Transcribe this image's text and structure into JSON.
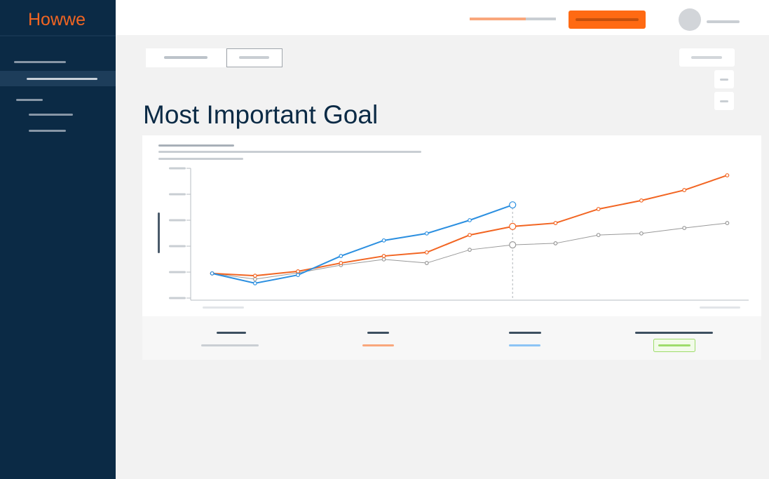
{
  "sidebar": {
    "logo": "Howwe"
  },
  "page": {
    "title": "Most Important Goal"
  },
  "chart_data": {
    "type": "line",
    "x": [
      0,
      1,
      2,
      3,
      4,
      5,
      6,
      7,
      8,
      9,
      10,
      11,
      12
    ],
    "xlim": [
      -0.5,
      12.5
    ],
    "ylim": [
      0,
      5
    ],
    "yticks": [
      0,
      1,
      2,
      3,
      4,
      5
    ],
    "highlight_index": 7,
    "series": [
      {
        "color": "#999999",
        "values": [
          0.95,
          0.73,
          0.97,
          1.27,
          1.49,
          1.35,
          1.86,
          2.05,
          2.11,
          2.43,
          2.49,
          2.7,
          2.89
        ]
      },
      {
        "color": "#f26522",
        "values": [
          0.95,
          0.86,
          1.03,
          1.35,
          1.62,
          1.76,
          2.43,
          2.76,
          2.89,
          3.43,
          3.76,
          4.16,
          4.73
        ]
      },
      {
        "color": "#2b8fe0",
        "values": [
          0.95,
          0.57,
          0.89,
          1.62,
          2.22,
          2.49,
          3.0,
          3.59,
          null,
          null,
          null,
          null,
          null
        ]
      }
    ]
  }
}
